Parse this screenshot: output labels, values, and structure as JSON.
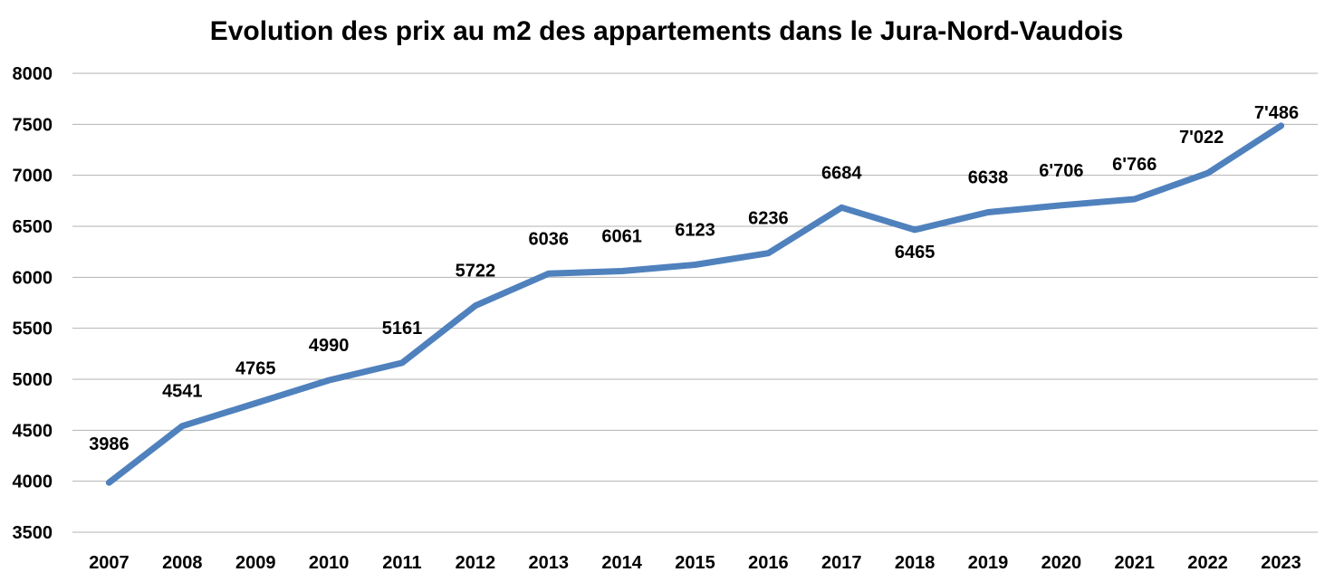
{
  "chart_data": {
    "type": "line",
    "title": "Evolution des prix au m2 des appartements dans le Jura-Nord-Vaudois",
    "xlabel": "",
    "ylabel": "",
    "categories": [
      "2007",
      "2008",
      "2009",
      "2010",
      "2011",
      "2012",
      "2013",
      "2014",
      "2015",
      "2016",
      "2017",
      "2018",
      "2019",
      "2020",
      "2021",
      "2022",
      "2023"
    ],
    "series": [
      {
        "values": [
          3986,
          4541,
          4765,
          4990,
          5161,
          5722,
          6036,
          6061,
          6123,
          6236,
          6684,
          6465,
          6638,
          6706,
          6766,
          7022,
          7486
        ],
        "labels": [
          "3986",
          "4541",
          "4765",
          "4990",
          "5161",
          "5722",
          "6036",
          "6061",
          "6123",
          "6236",
          "6684",
          "6465",
          "6638",
          "6'706",
          "6'766",
          "7'022",
          "7'486"
        ],
        "color": "#4f81bd"
      }
    ],
    "ylim": [
      3500,
      8000
    ],
    "yticks": [
      3500,
      4000,
      4500,
      5000,
      5500,
      6000,
      6500,
      7000,
      7500,
      8000
    ],
    "grid": true,
    "legend": "none"
  }
}
